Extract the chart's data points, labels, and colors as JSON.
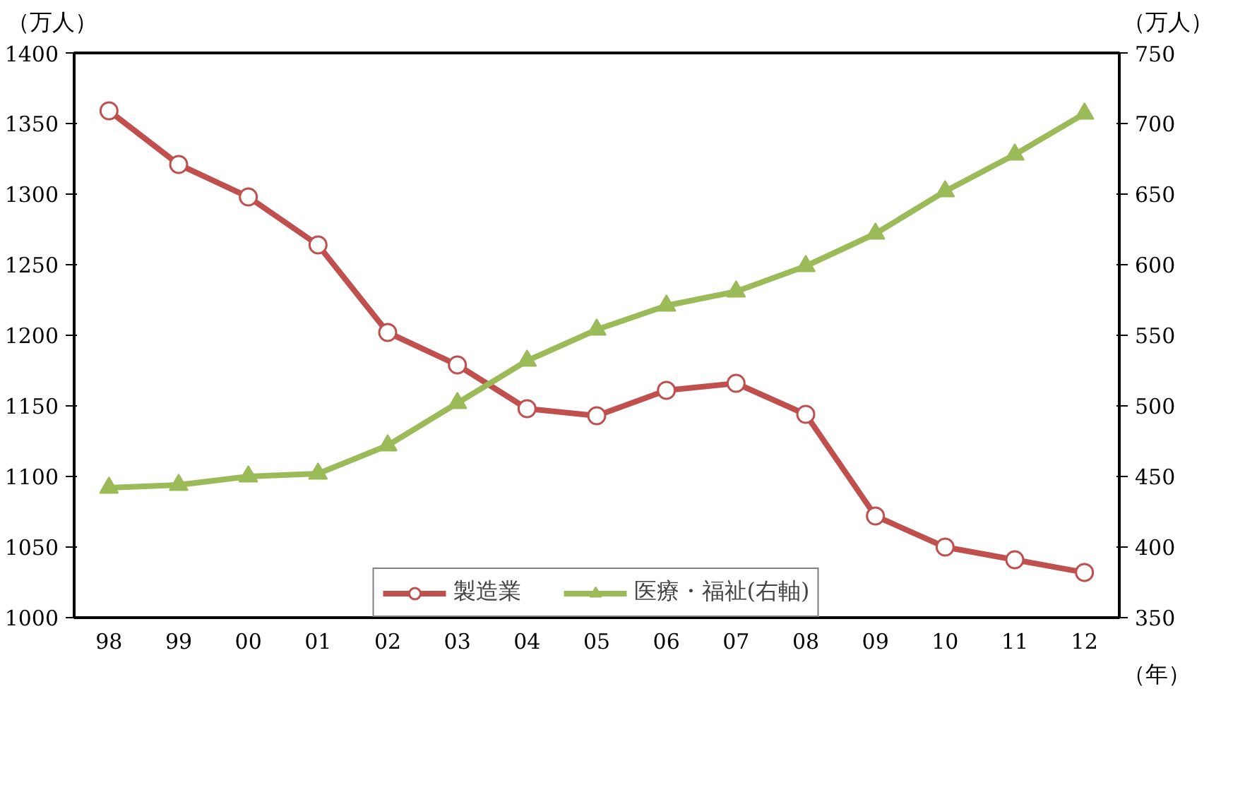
{
  "chart_data": {
    "type": "line",
    "ylabel": "（万人）",
    "y2label": "（万人）",
    "xlabel": "（年）",
    "categories": [
      "98",
      "99",
      "00",
      "01",
      "02",
      "03",
      "04",
      "05",
      "06",
      "07",
      "08",
      "09",
      "10",
      "11",
      "12"
    ],
    "series": [
      {
        "name": "製造業",
        "color": "#c0504d",
        "marker": "circle",
        "values": [
          1359,
          1321,
          1298,
          1264,
          1202,
          1179,
          1148,
          1143,
          1161,
          1166,
          1144,
          1072,
          1050,
          1041,
          1032
        ]
      },
      {
        "name": "医療・福祉(右軸)",
        "color": "#9bbb59",
        "marker": "triangle",
        "axis": "y2",
        "values": [
          442,
          444,
          450,
          452,
          472,
          502,
          532,
          554,
          571,
          581,
          599,
          622,
          652,
          678,
          707
        ]
      }
    ],
    "ylim": [
      1000,
      1400
    ],
    "yticks": [
      1000,
      1050,
      1100,
      1150,
      1200,
      1250,
      1300,
      1350,
      1400
    ],
    "y2lim": [
      350,
      750
    ],
    "y2ticks": [
      350,
      400,
      450,
      500,
      550,
      600,
      650,
      700,
      750
    ],
    "grid": false,
    "legend": "bottom",
    "line_style": "solid"
  }
}
